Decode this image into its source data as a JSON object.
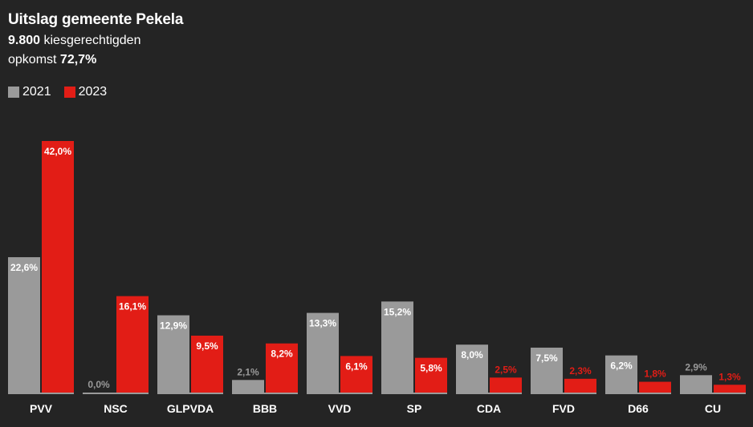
{
  "header": {
    "title": "Uitslag gemeente Pekela",
    "voters_value": "9.800",
    "voters_label": " kiesgerechtigden",
    "turnout_label": "opkomst ",
    "turnout_value": "72,7%"
  },
  "colors": {
    "background": "#242424",
    "series_2021": "#9a9a9a",
    "series_2023": "#e21d16",
    "text": "#ffffff",
    "axis": "#9a9a9a"
  },
  "chart_data": {
    "type": "bar",
    "title": "Uitslag gemeente Pekela",
    "categories": [
      "PVV",
      "NSC",
      "GLPVDA",
      "BBB",
      "VVD",
      "SP",
      "CDA",
      "FVD",
      "D66",
      "CU"
    ],
    "series": [
      {
        "name": "2021",
        "values": [
          22.6,
          0.0,
          12.9,
          2.1,
          13.3,
          15.2,
          8.0,
          7.5,
          6.2,
          2.9
        ],
        "labels": [
          "22,6%",
          "0,0%",
          "12,9%",
          "2,1%",
          "13,3%",
          "15,2%",
          "8,0%",
          "7,5%",
          "6,2%",
          "2,9%"
        ]
      },
      {
        "name": "2023",
        "values": [
          42.0,
          16.1,
          9.5,
          8.2,
          6.1,
          5.8,
          2.5,
          2.3,
          1.8,
          1.3
        ],
        "labels": [
          "42,0%",
          "16,1%",
          "9,5%",
          "8,2%",
          "6,1%",
          "5,8%",
          "2,5%",
          "2,3%",
          "1,8%",
          "1,3%"
        ]
      }
    ],
    "ylim": [
      0,
      42.0
    ],
    "legend_position": "top-left",
    "grid": false
  }
}
